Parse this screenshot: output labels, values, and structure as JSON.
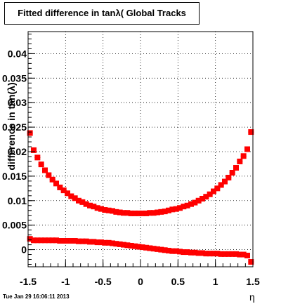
{
  "chart_data": {
    "type": "scatter",
    "title": "Fitted difference in tanλ( Global Tracks",
    "xlabel": "η",
    "ylabel": "difference in tan(λ)",
    "xlim": [
      -1.5,
      1.5
    ],
    "ylim": [
      -0.0035,
      0.0445
    ],
    "grid": true,
    "x_ticks": [
      "-1.5",
      "-1",
      "-0.5",
      "0",
      "0.5",
      "1",
      "1.5"
    ],
    "x_tick_values": [
      -1.5,
      -1,
      -0.5,
      0,
      0.5,
      1,
      1.5
    ],
    "y_ticks": [
      "0",
      "0.005",
      "0.01",
      "0.015",
      "0.02",
      "0.025",
      "0.03",
      "0.035",
      "0.04"
    ],
    "y_tick_values": [
      0,
      0.005,
      0.01,
      0.015,
      0.02,
      0.025,
      0.03,
      0.035,
      0.04
    ],
    "marker_color": "#ff0000",
    "series": [
      {
        "x": [
          -1.475,
          -1.425,
          -1.375,
          -1.325,
          -1.275,
          -1.225,
          -1.175,
          -1.125,
          -1.075,
          -1.025,
          -0.975,
          -0.925,
          -0.875,
          -0.825,
          -0.775,
          -0.725,
          -0.675,
          -0.625,
          -0.575,
          -0.525,
          -0.475,
          -0.425,
          -0.375,
          -0.325,
          -0.275,
          -0.225,
          -0.175,
          -0.125,
          -0.075,
          -0.025,
          0.025,
          0.075,
          0.125,
          0.175,
          0.225,
          0.275,
          0.325,
          0.375,
          0.425,
          0.475,
          0.525,
          0.575,
          0.625,
          0.675,
          0.725,
          0.775,
          0.825,
          0.875,
          0.925,
          0.975,
          1.025,
          1.075,
          1.125,
          1.175,
          1.225,
          1.275,
          1.325,
          1.375,
          1.425,
          1.475
        ],
        "y": [
          0.0238,
          0.0203,
          0.0188,
          0.0174,
          0.0162,
          0.0152,
          0.0143,
          0.0135,
          0.0127,
          0.0121,
          0.0115,
          0.0109,
          0.0105,
          0.01,
          0.0097,
          0.0093,
          0.009,
          0.0088,
          0.0085,
          0.0083,
          0.0081,
          0.008,
          0.0079,
          0.0077,
          0.0076,
          0.0075,
          0.0075,
          0.0074,
          0.0074,
          0.0074,
          0.0074,
          0.0074,
          0.0075,
          0.0075,
          0.0076,
          0.0077,
          0.0078,
          0.008,
          0.0082,
          0.0083,
          0.0085,
          0.0088,
          0.009,
          0.0093,
          0.0096,
          0.01,
          0.0104,
          0.0108,
          0.0113,
          0.0119,
          0.0125,
          0.0132,
          0.0139,
          0.0147,
          0.0157,
          0.0167,
          0.018,
          0.0191,
          0.0205,
          0.024
        ]
      },
      {
        "x": [
          -1.475,
          -1.425,
          -1.375,
          -1.325,
          -1.275,
          -1.225,
          -1.175,
          -1.125,
          -1.075,
          -1.025,
          -0.975,
          -0.925,
          -0.875,
          -0.825,
          -0.775,
          -0.725,
          -0.675,
          -0.625,
          -0.575,
          -0.525,
          -0.475,
          -0.425,
          -0.375,
          -0.325,
          -0.275,
          -0.225,
          -0.175,
          -0.125,
          -0.075,
          -0.025,
          0.025,
          0.075,
          0.125,
          0.175,
          0.225,
          0.275,
          0.325,
          0.375,
          0.425,
          0.475,
          0.525,
          0.575,
          0.625,
          0.675,
          0.725,
          0.775,
          0.825,
          0.875,
          0.925,
          0.975,
          1.025,
          1.075,
          1.125,
          1.175,
          1.225,
          1.275,
          1.325,
          1.375,
          1.425,
          1.475
        ],
        "y": [
          0.0022,
          0.0019,
          0.0019,
          0.0019,
          0.0019,
          0.0019,
          0.0019,
          0.0019,
          0.0018,
          0.0018,
          0.0018,
          0.0018,
          0.0018,
          0.0017,
          0.0017,
          0.0017,
          0.0016,
          0.0016,
          0.0015,
          0.0015,
          0.0014,
          0.0014,
          0.0013,
          0.0012,
          0.0011,
          0.001,
          0.0009,
          0.0008,
          0.0007,
          0.0006,
          0.0005,
          0.0004,
          0.0003,
          0.0002,
          0.0001,
          0.0,
          -0.0001,
          -0.0002,
          -0.0003,
          -0.0003,
          -0.0004,
          -0.0005,
          -0.0005,
          -0.0006,
          -0.0006,
          -0.0007,
          -0.0007,
          -0.0008,
          -0.0008,
          -0.0008,
          -0.0008,
          -0.0009,
          -0.0009,
          -0.0009,
          -0.0009,
          -0.0009,
          -0.001,
          -0.001,
          -0.0012,
          -0.0025
        ]
      }
    ]
  },
  "timestamp": "Tue Jan 29 16:06:11 2013"
}
